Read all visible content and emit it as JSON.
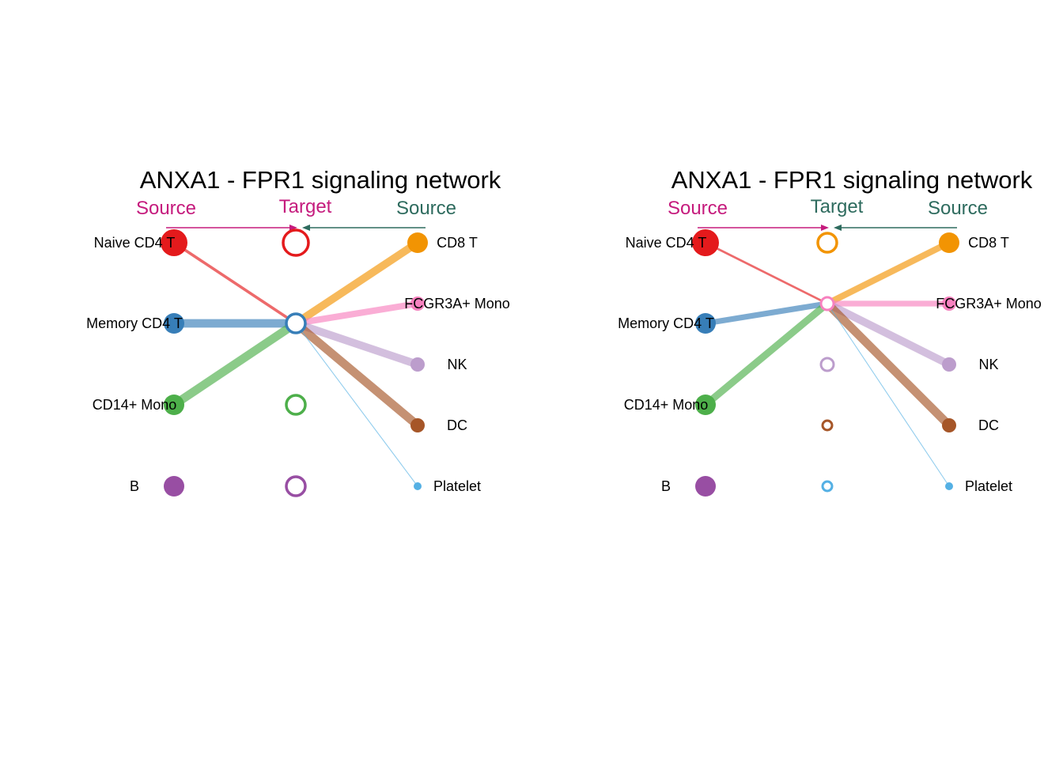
{
  "colors": {
    "source_left": "#C51B7D",
    "source_right": "#2E6B5E",
    "Naive CD4 T": "#E41A1C",
    "Memory CD4 T": "#377EB8",
    "CD14+ Mono": "#4DAF4A",
    "B": "#984EA3",
    "CD8 T": "#F29403",
    "FCGR3A+ Mono": "#F781BF",
    "NK": "#BC9DCC",
    "DC": "#A65628",
    "Platelet": "#54B0E4"
  },
  "panels": [
    {
      "title": "ANXA1 - FPR1 signaling network",
      "source_left_label": "Source",
      "target_label": "Target",
      "source_right_label": "Source",
      "target_color_key": "source_left",
      "left_sources": [
        {
          "name": "Naive CD4 T",
          "size": 3
        },
        {
          "name": "Memory CD4 T",
          "size": 2
        },
        {
          "name": "CD14+ Mono",
          "size": 2
        },
        {
          "name": "B",
          "size": 2
        }
      ],
      "targets": [
        {
          "name": "Naive CD4 T",
          "size": 3
        },
        {
          "name": "Memory CD4 T",
          "size": 2
        },
        {
          "name": "CD14+ Mono",
          "size": 2
        },
        {
          "name": "B",
          "size": 2
        }
      ],
      "right_sources": [
        {
          "name": "CD8 T",
          "size": 2
        },
        {
          "name": "FCGR3A+ Mono",
          "size": 1
        },
        {
          "name": "NK",
          "size": 1
        },
        {
          "name": "DC",
          "size": 1
        },
        {
          "name": "Platelet",
          "size": 0
        }
      ],
      "edges": [
        {
          "from": "Naive CD4 T",
          "to": "Memory CD4 T",
          "weight": 2
        },
        {
          "from": "Memory CD4 T",
          "to": "Memory CD4 T",
          "weight": 6
        },
        {
          "from": "CD14+ Mono",
          "to": "Memory CD4 T",
          "weight": 6
        },
        {
          "from": "CD8 T",
          "to": "Memory CD4 T",
          "weight": 5.5
        },
        {
          "from": "FCGR3A+ Mono",
          "to": "Memory CD4 T",
          "weight": 4.5
        },
        {
          "from": "NK",
          "to": "Memory CD4 T",
          "weight": 5.5
        },
        {
          "from": "DC",
          "to": "Memory CD4 T",
          "weight": 6
        },
        {
          "from": "Platelet",
          "to": "Memory CD4 T",
          "weight": 0.6
        }
      ]
    },
    {
      "title": "ANXA1 - FPR1 signaling network",
      "source_left_label": "Source",
      "target_label": "Target",
      "source_right_label": "Source",
      "target_color_key": "source_right",
      "left_sources": [
        {
          "name": "Naive CD4 T",
          "size": 3
        },
        {
          "name": "Memory CD4 T",
          "size": 2
        },
        {
          "name": "CD14+ Mono",
          "size": 2
        },
        {
          "name": "B",
          "size": 2
        }
      ],
      "targets": [
        {
          "name": "CD8 T",
          "size": 2
        },
        {
          "name": "FCGR3A+ Mono",
          "size": 1
        },
        {
          "name": "NK",
          "size": 1
        },
        {
          "name": "DC",
          "size": 0.5
        },
        {
          "name": "Platelet",
          "size": 0.5
        }
      ],
      "right_sources": [
        {
          "name": "CD8 T",
          "size": 2
        },
        {
          "name": "FCGR3A+ Mono",
          "size": 1
        },
        {
          "name": "NK",
          "size": 1
        },
        {
          "name": "DC",
          "size": 1
        },
        {
          "name": "Platelet",
          "size": 0
        }
      ],
      "edges": [
        {
          "from": "Naive CD4 T",
          "to": "FCGR3A+ Mono",
          "weight": 1.5
        },
        {
          "from": "Memory CD4 T",
          "to": "FCGR3A+ Mono",
          "weight": 4
        },
        {
          "from": "CD14+ Mono",
          "to": "FCGR3A+ Mono",
          "weight": 5
        },
        {
          "from": "CD8 T",
          "to": "FCGR3A+ Mono",
          "weight": 4.5
        },
        {
          "from": "FCGR3A+ Mono",
          "to": "FCGR3A+ Mono",
          "weight": 4
        },
        {
          "from": "NK",
          "to": "FCGR3A+ Mono",
          "weight": 5.5
        },
        {
          "from": "DC",
          "to": "FCGR3A+ Mono",
          "weight": 6
        },
        {
          "from": "Platelet",
          "to": "FCGR3A+ Mono",
          "weight": 0.6
        }
      ]
    }
  ]
}
